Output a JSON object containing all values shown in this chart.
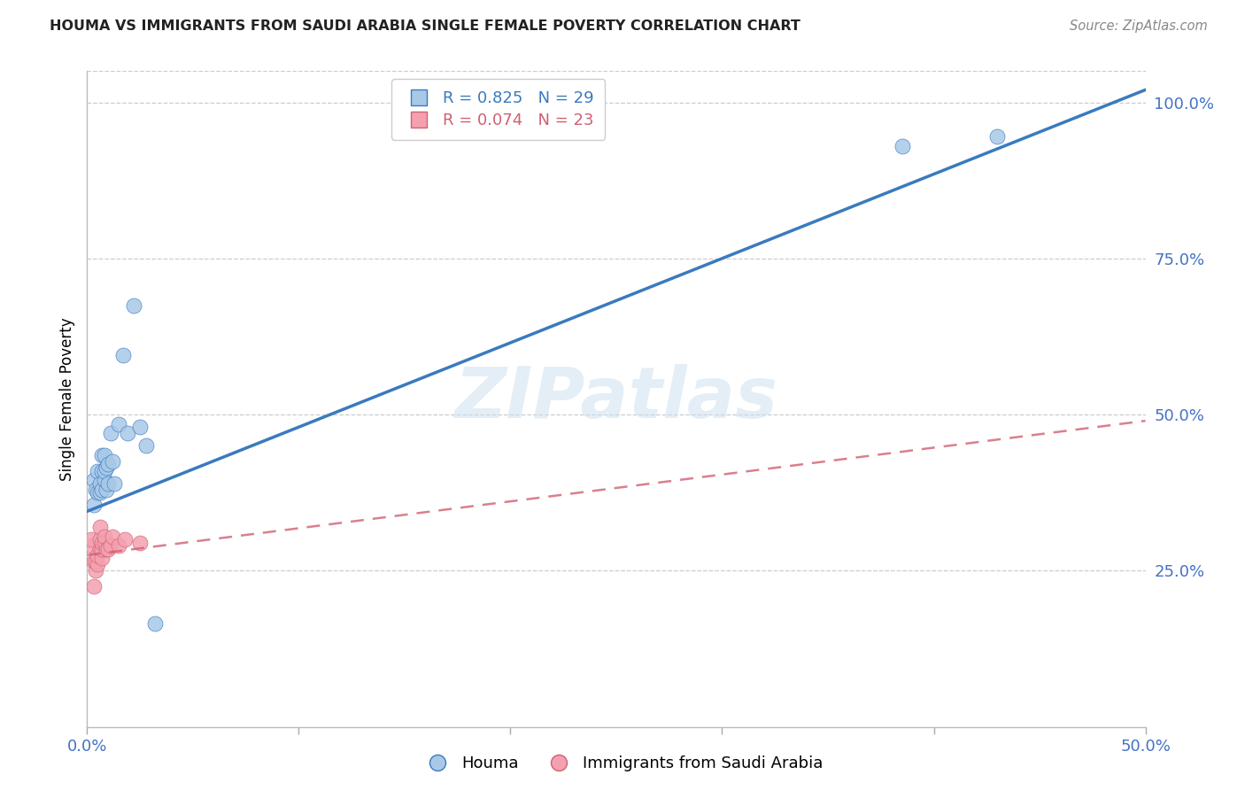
{
  "title": "HOUMA VS IMMIGRANTS FROM SAUDI ARABIA SINGLE FEMALE POVERTY CORRELATION CHART",
  "source": "Source: ZipAtlas.com",
  "ylabel": "Single Female Poverty",
  "xlim": [
    0.0,
    0.5
  ],
  "ylim": [
    0.0,
    1.05
  ],
  "houma_R": 0.825,
  "houma_N": 29,
  "saudi_R": 0.074,
  "saudi_N": 23,
  "houma_color": "#a8c8e8",
  "saudi_color": "#f4a0b0",
  "trendline_houma_color": "#3a7abf",
  "trendline_saudi_color": "#d06070",
  "watermark_zip": "ZIP",
  "watermark_atlas": "atlas",
  "houma_x": [
    0.003,
    0.003,
    0.004,
    0.005,
    0.005,
    0.006,
    0.006,
    0.007,
    0.007,
    0.007,
    0.008,
    0.008,
    0.008,
    0.009,
    0.009,
    0.01,
    0.01,
    0.011,
    0.012,
    0.013,
    0.015,
    0.017,
    0.019,
    0.022,
    0.025,
    0.028,
    0.032,
    0.385,
    0.43
  ],
  "houma_y": [
    0.355,
    0.395,
    0.38,
    0.375,
    0.41,
    0.375,
    0.39,
    0.38,
    0.41,
    0.435,
    0.395,
    0.41,
    0.435,
    0.38,
    0.415,
    0.42,
    0.39,
    0.47,
    0.425,
    0.39,
    0.485,
    0.595,
    0.47,
    0.675,
    0.48,
    0.45,
    0.165,
    0.93,
    0.945
  ],
  "saudi_x": [
    0.002,
    0.002,
    0.003,
    0.003,
    0.004,
    0.004,
    0.005,
    0.005,
    0.006,
    0.006,
    0.006,
    0.007,
    0.007,
    0.007,
    0.008,
    0.008,
    0.009,
    0.01,
    0.011,
    0.012,
    0.015,
    0.018,
    0.025
  ],
  "saudi_y": [
    0.29,
    0.3,
    0.225,
    0.265,
    0.25,
    0.265,
    0.26,
    0.275,
    0.285,
    0.3,
    0.32,
    0.27,
    0.285,
    0.295,
    0.295,
    0.305,
    0.285,
    0.285,
    0.29,
    0.305,
    0.29,
    0.3,
    0.295
  ],
  "houma_trendline_x": [
    0.0,
    0.5
  ],
  "houma_trendline_y": [
    0.345,
    1.02
  ],
  "saudi_trendline_x": [
    0.0,
    0.5
  ],
  "saudi_trendline_y": [
    0.275,
    0.49
  ],
  "x_tick_positions": [
    0.0,
    0.1,
    0.2,
    0.3,
    0.4,
    0.5
  ],
  "x_tick_labels": [
    "0.0%",
    "",
    "",
    "",
    "",
    "50.0%"
  ],
  "y_tick_positions": [
    0.25,
    0.5,
    0.75,
    1.0
  ],
  "y_tick_labels": [
    "25.0%",
    "50.0%",
    "75.0%",
    "100.0%"
  ]
}
